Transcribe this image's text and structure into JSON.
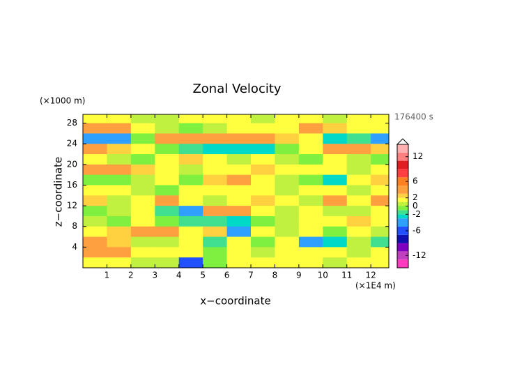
{
  "chart_data": {
    "type": "heatmap",
    "title": "Zonal Velocity",
    "y_unit": "(×1000 m)",
    "x_unit": "(×1E4 m)",
    "time_label": "176400 s",
    "x_label": "x−coordinate",
    "y_label": "z−coordinate",
    "xlim": [
      0,
      12.75
    ],
    "ylim": [
      0,
      29.7
    ],
    "xticks": [
      1,
      2,
      3,
      4,
      5,
      6,
      7,
      8,
      9,
      10,
      11,
      12
    ],
    "yticks": [
      4,
      8,
      12,
      16,
      20,
      24,
      28
    ],
    "x": [
      0.5,
      1.5,
      2.5,
      3.5,
      4.5,
      5.5,
      6.5,
      7.5,
      8.5,
      9.5,
      10.5,
      11.5,
      12.5
    ],
    "y": [
      29,
      27,
      25,
      23,
      21,
      19,
      17,
      15,
      13,
      11,
      9,
      7,
      5,
      3,
      1
    ],
    "z": [
      [
        1,
        1,
        0.5,
        0.5,
        1,
        1,
        1,
        0.5,
        1,
        1,
        0.5,
        1,
        1
      ],
      [
        3,
        3,
        1,
        0,
        -1,
        0.5,
        1,
        1.5,
        1,
        3,
        2,
        1,
        1
      ],
      [
        -5,
        -4,
        -1,
        3,
        4,
        4,
        3,
        3,
        2,
        1,
        -3,
        -2,
        -4
      ],
      [
        3,
        2,
        1,
        -1,
        -2,
        -3,
        -3,
        -3,
        -1,
        1,
        3,
        3,
        2
      ],
      [
        1,
        0,
        -1,
        1,
        2,
        1,
        0.5,
        1,
        0,
        -1,
        1,
        0.5,
        -1
      ],
      [
        3,
        3,
        2,
        1,
        0.5,
        1,
        1.5,
        2,
        1.5,
        1,
        1,
        0.5,
        1
      ],
      [
        -1,
        -1,
        0,
        1,
        -1,
        2,
        3,
        1,
        0,
        -1,
        -3,
        1,
        2
      ],
      [
        1,
        1,
        0.5,
        -0.5,
        1,
        1,
        1,
        1,
        0.5,
        1,
        1,
        0.5,
        1
      ],
      [
        2,
        0.5,
        1,
        3,
        1,
        0.5,
        1,
        2,
        1,
        0.5,
        3,
        1,
        3
      ],
      [
        -1,
        0,
        1,
        -2,
        -5,
        3,
        3,
        1,
        0,
        1,
        0.5,
        0.5,
        1
      ],
      [
        0,
        -1,
        1,
        -1,
        -2,
        -2,
        -3,
        -1,
        0,
        1,
        1,
        2,
        1
      ],
      [
        1,
        2,
        3,
        3,
        1,
        2,
        -4,
        1,
        0.5,
        1,
        -1,
        1,
        0.5
      ],
      [
        3,
        2,
        0.5,
        0.5,
        1,
        -2,
        1,
        -1,
        1,
        -5,
        -3,
        0.5,
        -2
      ],
      [
        3,
        3,
        1,
        1,
        1,
        -1,
        1,
        0.5,
        1,
        1,
        1,
        0.5,
        1
      ],
      [
        1,
        1,
        0.5,
        0.5,
        -6,
        -1,
        1,
        1,
        1,
        1,
        0.5,
        1,
        1
      ]
    ],
    "colorbar": {
      "levels": [
        -15,
        -13,
        -11,
        -9,
        -7,
        -5,
        -3,
        -2,
        -1,
        0,
        1,
        2,
        3,
        5,
        7,
        9,
        11,
        13,
        15
      ],
      "colors": [
        "#ff3cbf",
        "#c040c0",
        "#8000c0",
        "#1010b0",
        "#2050ff",
        "#30a0ff",
        "#00d8c8",
        "#40e090",
        "#80f040",
        "#c0f040",
        "#ffff40",
        "#ffd040",
        "#ffa040",
        "#ff8020",
        "#ff4040",
        "#e02020",
        "#ff8080",
        "#ffb0b0"
      ],
      "ticks": [
        12,
        6,
        2,
        0,
        -2,
        -6,
        -12
      ]
    }
  }
}
